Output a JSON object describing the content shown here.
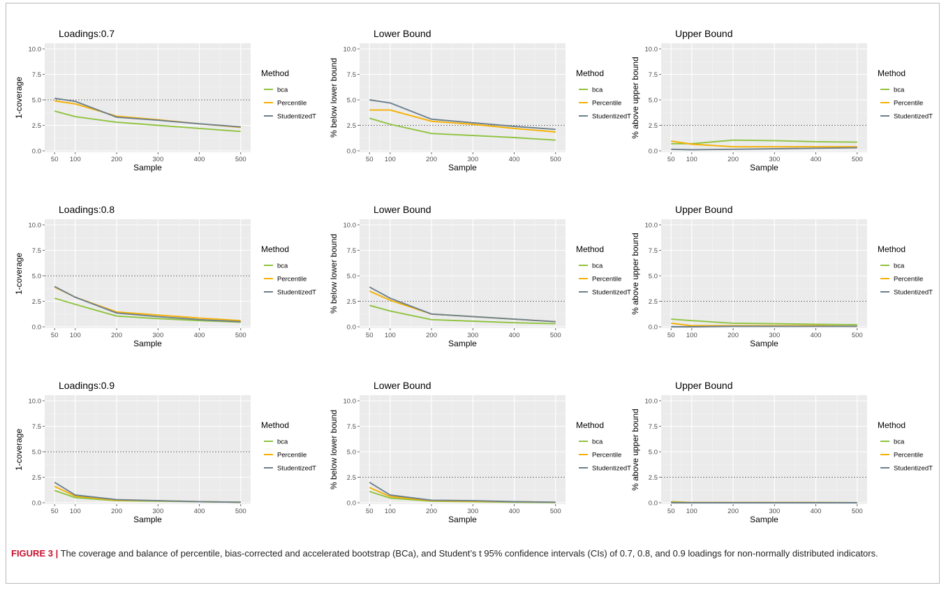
{
  "caption": {
    "label": "FIGURE 3 |",
    "text": " The coverage and balance of percentile, bias-corrected and accelerated bootstrap (BCa), and Student’s t 95% confidence intervals (CIs) of 0.7, 0.8, and 0.9 loadings for non-normally distributed indicators."
  },
  "colors": {
    "bca": "#8fc33f",
    "Percentile": "#f5b000",
    "StudentizedT": "#6b7f8c",
    "panel_bg": "#ebebeb",
    "grid": "#ffffff",
    "reference": "#777777"
  },
  "chart_data": [
    {
      "type": "line",
      "title": "Loadings:0.7",
      "xlabel": "Sample",
      "ylabel": "1-coverage",
      "x": [
        50,
        100,
        200,
        300,
        400,
        500
      ],
      "xticks": [
        50,
        100,
        200,
        300,
        400,
        500
      ],
      "ylim": [
        0,
        10
      ],
      "yticks": [
        "0.0",
        "2.5",
        "5.0",
        "7.5",
        "10.0"
      ],
      "reference_line": 5.0,
      "legend_title": "Method",
      "series": [
        {
          "name": "bca",
          "values": [
            3.9,
            3.35,
            2.8,
            2.5,
            2.2,
            1.9
          ]
        },
        {
          "name": "Percentile",
          "values": [
            4.9,
            4.6,
            3.4,
            3.05,
            2.65,
            2.3
          ]
        },
        {
          "name": "StudentizedT",
          "values": [
            5.15,
            4.85,
            3.3,
            3.0,
            2.65,
            2.35
          ]
        }
      ]
    },
    {
      "type": "line",
      "title": "Lower Bound",
      "xlabel": "Sample",
      "ylabel": "% below lower bound",
      "x": [
        50,
        100,
        200,
        300,
        400,
        500
      ],
      "xticks": [
        50,
        100,
        200,
        300,
        400,
        500
      ],
      "ylim": [
        0,
        10
      ],
      "yticks": [
        "0.0",
        "2.5",
        "5.0",
        "7.5",
        "10.0"
      ],
      "reference_line": 2.5,
      "legend_title": "Method",
      "series": [
        {
          "name": "bca",
          "values": [
            3.2,
            2.6,
            1.7,
            1.5,
            1.3,
            1.05
          ]
        },
        {
          "name": "Percentile",
          "values": [
            4.0,
            4.0,
            2.9,
            2.6,
            2.2,
            1.85
          ]
        },
        {
          "name": "StudentizedT",
          "values": [
            5.0,
            4.7,
            3.1,
            2.75,
            2.4,
            2.1
          ]
        }
      ]
    },
    {
      "type": "line",
      "title": "Upper Bound",
      "xlabel": "Sample",
      "ylabel": "% above upper bound",
      "x": [
        50,
        100,
        200,
        300,
        400,
        500
      ],
      "xticks": [
        50,
        100,
        200,
        300,
        400,
        500
      ],
      "ylim": [
        0,
        10
      ],
      "yticks": [
        "0.0",
        "2.5",
        "5.0",
        "7.5",
        "10.0"
      ],
      "reference_line": 2.5,
      "legend_title": "Method",
      "series": [
        {
          "name": "bca",
          "values": [
            0.7,
            0.7,
            1.05,
            1.0,
            0.9,
            0.85
          ]
        },
        {
          "name": "Percentile",
          "values": [
            0.95,
            0.65,
            0.4,
            0.4,
            0.4,
            0.4
          ]
        },
        {
          "name": "StudentizedT",
          "values": [
            0.15,
            0.1,
            0.15,
            0.2,
            0.25,
            0.3
          ]
        }
      ]
    },
    {
      "type": "line",
      "title": "Loadings:0.8",
      "xlabel": "Sample",
      "ylabel": "1-coverage",
      "x": [
        50,
        100,
        200,
        300,
        400,
        500
      ],
      "xticks": [
        50,
        100,
        200,
        300,
        400,
        500
      ],
      "ylim": [
        0,
        10
      ],
      "yticks": [
        "0.0",
        "2.5",
        "5.0",
        "7.5",
        "10.0"
      ],
      "reference_line": 5.0,
      "legend_title": "Method",
      "series": [
        {
          "name": "bca",
          "values": [
            2.8,
            2.2,
            1.05,
            0.8,
            0.6,
            0.45
          ]
        },
        {
          "name": "Percentile",
          "values": [
            3.9,
            2.9,
            1.45,
            1.15,
            0.85,
            0.6
          ]
        },
        {
          "name": "StudentizedT",
          "values": [
            3.95,
            2.9,
            1.35,
            1.0,
            0.7,
            0.5
          ]
        }
      ]
    },
    {
      "type": "line",
      "title": "Lower Bound",
      "xlabel": "Sample",
      "ylabel": "% below lower bound",
      "x": [
        50,
        100,
        200,
        300,
        400,
        500
      ],
      "xticks": [
        50,
        100,
        200,
        300,
        400,
        500
      ],
      "ylim": [
        0,
        10
      ],
      "yticks": [
        "0.0",
        "2.5",
        "5.0",
        "7.5",
        "10.0"
      ],
      "reference_line": 2.5,
      "legend_title": "Method",
      "series": [
        {
          "name": "bca",
          "values": [
            2.1,
            1.55,
            0.7,
            0.55,
            0.4,
            0.3
          ]
        },
        {
          "name": "Percentile",
          "values": [
            3.5,
            2.6,
            1.25,
            1.0,
            0.75,
            0.5
          ]
        },
        {
          "name": "StudentizedT",
          "values": [
            3.9,
            2.8,
            1.25,
            1.0,
            0.75,
            0.5
          ]
        }
      ]
    },
    {
      "type": "line",
      "title": "Upper Bound",
      "xlabel": "Sample",
      "ylabel": "% above upper bound",
      "x": [
        50,
        100,
        200,
        300,
        400,
        500
      ],
      "xticks": [
        50,
        100,
        200,
        300,
        400,
        500
      ],
      "ylim": [
        0,
        10
      ],
      "yticks": [
        "0.0",
        "2.5",
        "5.0",
        "7.5",
        "10.0"
      ],
      "reference_line": 2.5,
      "legend_title": "Method",
      "series": [
        {
          "name": "bca",
          "values": [
            0.75,
            0.6,
            0.35,
            0.3,
            0.25,
            0.2
          ]
        },
        {
          "name": "Percentile",
          "values": [
            0.35,
            0.1,
            0.1,
            0.1,
            0.1,
            0.05
          ]
        },
        {
          "name": "StudentizedT",
          "values": [
            0.0,
            0.0,
            0.05,
            0.05,
            0.05,
            0.05
          ]
        }
      ]
    },
    {
      "type": "line",
      "title": "Loadings:0.9",
      "xlabel": "Sample",
      "ylabel": "1-coverage",
      "x": [
        50,
        100,
        200,
        300,
        400,
        500
      ],
      "xticks": [
        50,
        100,
        200,
        300,
        400,
        500
      ],
      "ylim": [
        0,
        10
      ],
      "yticks": [
        "0.0",
        "2.5",
        "5.0",
        "7.5",
        "10.0"
      ],
      "reference_line": 5.0,
      "legend_title": "Method",
      "series": [
        {
          "name": "bca",
          "values": [
            1.2,
            0.5,
            0.2,
            0.15,
            0.1,
            0.05
          ]
        },
        {
          "name": "Percentile",
          "values": [
            1.6,
            0.65,
            0.25,
            0.2,
            0.1,
            0.05
          ]
        },
        {
          "name": "StudentizedT",
          "values": [
            2.0,
            0.75,
            0.3,
            0.2,
            0.1,
            0.05
          ]
        }
      ]
    },
    {
      "type": "line",
      "title": "Lower Bound",
      "xlabel": "Sample",
      "ylabel": "% below lower bound",
      "x": [
        50,
        100,
        200,
        300,
        400,
        500
      ],
      "xticks": [
        50,
        100,
        200,
        300,
        400,
        500
      ],
      "ylim": [
        0,
        10
      ],
      "yticks": [
        "0.0",
        "2.5",
        "5.0",
        "7.5",
        "10.0"
      ],
      "reference_line": 2.5,
      "legend_title": "Method",
      "series": [
        {
          "name": "bca",
          "values": [
            1.1,
            0.45,
            0.15,
            0.1,
            0.05,
            0.02
          ]
        },
        {
          "name": "Percentile",
          "values": [
            1.5,
            0.6,
            0.2,
            0.15,
            0.1,
            0.05
          ]
        },
        {
          "name": "StudentizedT",
          "values": [
            2.0,
            0.75,
            0.25,
            0.2,
            0.1,
            0.05
          ]
        }
      ]
    },
    {
      "type": "line",
      "title": "Upper Bound",
      "xlabel": "Sample",
      "ylabel": "% above upper bound",
      "x": [
        50,
        100,
        200,
        300,
        400,
        500
      ],
      "xticks": [
        50,
        100,
        200,
        300,
        400,
        500
      ],
      "ylim": [
        0,
        10
      ],
      "yticks": [
        "0.0",
        "2.5",
        "5.0",
        "7.5",
        "10.0"
      ],
      "reference_line": 2.5,
      "legend_title": "Method",
      "series": [
        {
          "name": "bca",
          "values": [
            0.1,
            0.02,
            0.02,
            0.02,
            0.02,
            0.0
          ]
        },
        {
          "name": "Percentile",
          "values": [
            0.05,
            0.02,
            0.02,
            0.02,
            0.02,
            0.0
          ]
        },
        {
          "name": "StudentizedT",
          "values": [
            0.0,
            0.0,
            0.0,
            0.0,
            0.0,
            0.0
          ]
        }
      ]
    }
  ]
}
